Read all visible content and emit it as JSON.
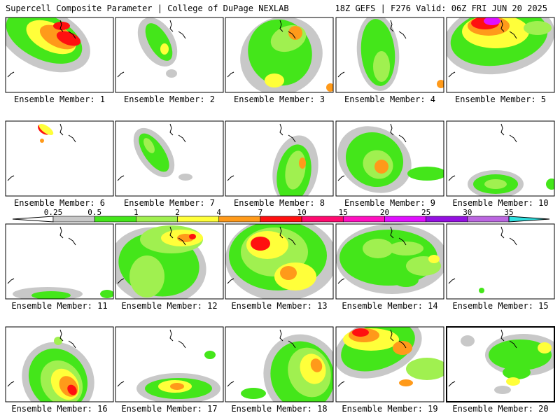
{
  "header": {
    "left": "Supercell Composite Parameter | College of DuPage NEXLAB",
    "right": "18Z GEFS | F276 Valid: 06Z FRI JUN 20 2025"
  },
  "colorbar": {
    "labels": [
      "0.25",
      "0.5",
      "1",
      "2",
      "4",
      "7",
      "10",
      "15",
      "20",
      "25",
      "30",
      "35"
    ],
    "colors": [
      "#c8c8c8",
      "#44e61a",
      "#a0f050",
      "#ffff3a",
      "#ff9a1a",
      "#ff1010",
      "#ff0a70",
      "#ff10c0",
      "#e010ff",
      "#9410e0",
      "#bb66e0",
      "#30e0e0"
    ]
  },
  "panels": [
    {
      "label": "Ensemble Member: 1",
      "highlight": false
    },
    {
      "label": "Ensemble Member: 2",
      "highlight": false
    },
    {
      "label": "Ensemble Member: 3",
      "highlight": false
    },
    {
      "label": "Ensemble Member: 4",
      "highlight": false
    },
    {
      "label": "Ensemble Member: 5",
      "highlight": false
    },
    {
      "label": "Ensemble Member: 6",
      "highlight": false
    },
    {
      "label": "Ensemble Member: 7",
      "highlight": false
    },
    {
      "label": "Ensemble Member: 8",
      "highlight": false
    },
    {
      "label": "Ensemble Member: 9",
      "highlight": false
    },
    {
      "label": "Ensemble Member: 10",
      "highlight": false
    },
    {
      "label": "Ensemble Member: 11",
      "highlight": false
    },
    {
      "label": "Ensemble Member: 12",
      "highlight": false
    },
    {
      "label": "Ensemble Member: 13",
      "highlight": false
    },
    {
      "label": "Ensemble Member: 14",
      "highlight": false
    },
    {
      "label": "Ensemble Member: 15",
      "highlight": false
    },
    {
      "label": "Ensemble Member: 16",
      "highlight": false
    },
    {
      "label": "Ensemble Member: 17",
      "highlight": false
    },
    {
      "label": "Ensemble Member: 18",
      "highlight": false
    },
    {
      "label": "Ensemble Member: 19",
      "highlight": false
    },
    {
      "label": "Ensemble Member: 20",
      "highlight": true
    }
  ]
}
